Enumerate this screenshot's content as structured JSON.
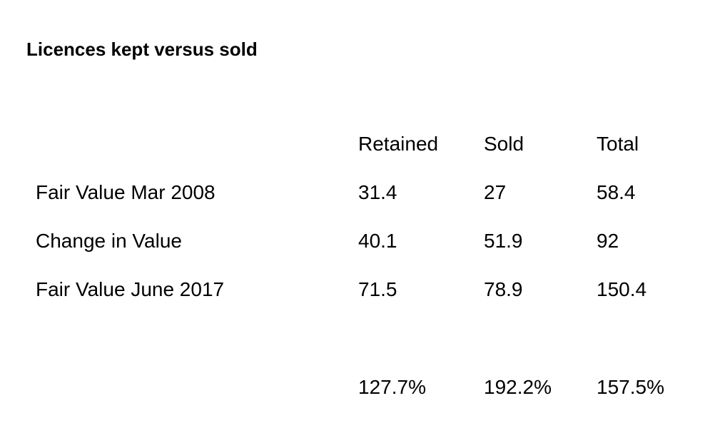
{
  "title": "Licences kept versus sold",
  "table": {
    "columns": [
      "Retained",
      "Sold",
      "Total"
    ],
    "rows": [
      {
        "label": "Fair Value Mar 2008",
        "values": [
          "31.4",
          "27",
          "58.4"
        ]
      },
      {
        "label": "Change in Value",
        "values": [
          "40.1",
          "51.9",
          "92"
        ]
      },
      {
        "label": "Fair Value June 2017",
        "values": [
          "71.5",
          "78.9",
          "150.4"
        ]
      }
    ],
    "percent_change": [
      "127.7%",
      "192.2%",
      "157.5%"
    ]
  }
}
